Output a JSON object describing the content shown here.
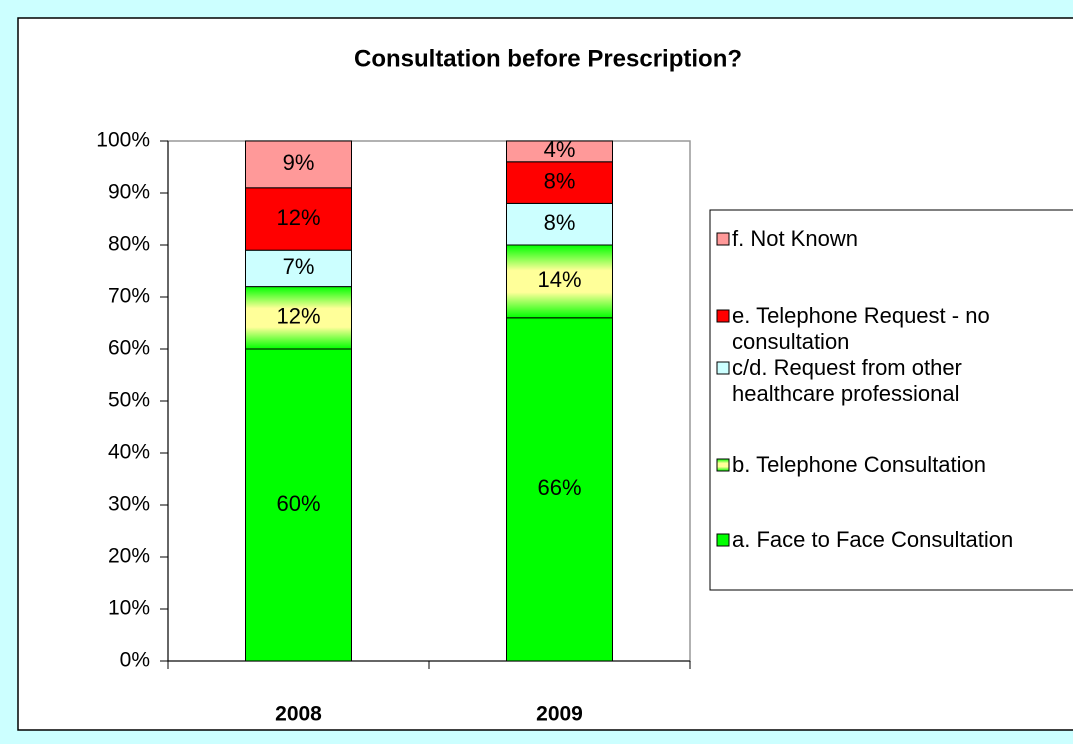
{
  "chart_data": {
    "type": "stacked_bar",
    "title": "Consultation before Prescription?",
    "categories": [
      "2008",
      "2009"
    ],
    "series": [
      {
        "name": "a. Face to Face Consultation",
        "color": "#00ff00",
        "values": [
          60,
          66
        ],
        "value_labels": [
          "60%",
          "66%"
        ]
      },
      {
        "name": "b. Telephone Consultation",
        "color": "#ffff99",
        "values": [
          12,
          14
        ],
        "value_labels": [
          "12%",
          "14%"
        ]
      },
      {
        "name": "c/d. Request from other healthcare professional",
        "color": "#ccffff",
        "values": [
          7,
          8
        ],
        "value_labels": [
          "7%",
          "8%"
        ]
      },
      {
        "name": "e. Telephone Request - no consultation",
        "color": "#ff0000",
        "values": [
          12,
          8
        ],
        "value_labels": [
          "12%",
          "8%"
        ]
      },
      {
        "name": "f. Not Known",
        "color": "#ff9999",
        "values": [
          9,
          4
        ],
        "value_labels": [
          "9%",
          "4%"
        ]
      }
    ],
    "ylim": [
      0,
      100
    ],
    "yticks": [
      {
        "value": 0,
        "label": "0%"
      },
      {
        "value": 10,
        "label": "10%"
      },
      {
        "value": 20,
        "label": "20%"
      },
      {
        "value": 30,
        "label": "30%"
      },
      {
        "value": 40,
        "label": "40%"
      },
      {
        "value": 50,
        "label": "50%"
      },
      {
        "value": 60,
        "label": "60%"
      },
      {
        "value": 70,
        "label": "70%"
      },
      {
        "value": 80,
        "label": "80%"
      },
      {
        "value": 90,
        "label": "90%"
      },
      {
        "value": 100,
        "label": "100%"
      }
    ]
  }
}
